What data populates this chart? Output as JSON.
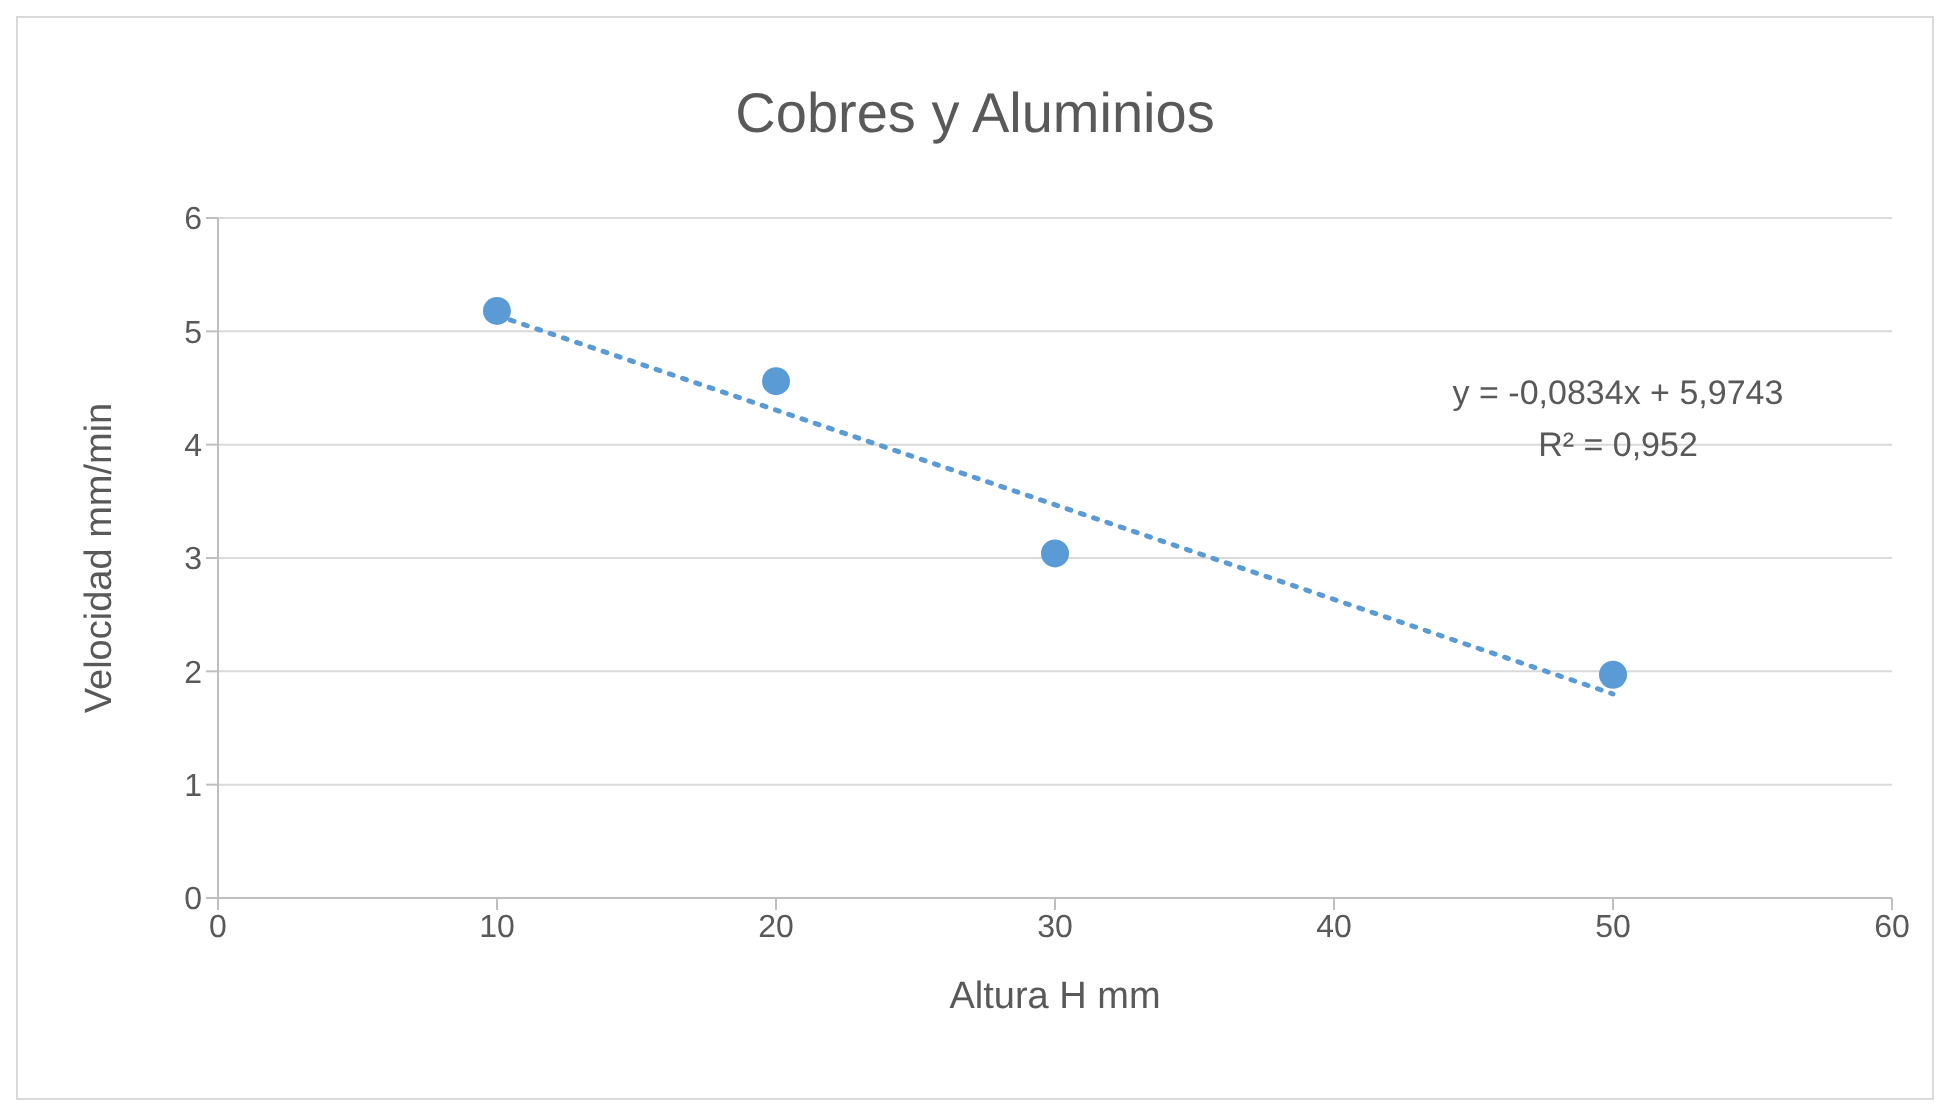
{
  "chart_data": {
    "type": "scatter",
    "title": "Cobres y Aluminios",
    "xlabel": "Altura H mm",
    "ylabel": "Velocidad mm/min",
    "x": [
      10,
      20,
      30,
      50
    ],
    "series": [
      {
        "color": "#5b9bd5",
        "values": [
          5.18,
          4.56,
          3.04,
          1.97
        ],
        "marker": "circle"
      },
      {
        "type": "line",
        "color": "#5b9bd5",
        "x": [
          10,
          50
        ],
        "values": [
          5.14,
          1.8
        ],
        "line_style": "dotted",
        "marker": "none"
      }
    ],
    "xlim": [
      0,
      60
    ],
    "xticks": [
      0,
      10,
      20,
      30,
      40,
      50,
      60
    ],
    "ylim": [
      0,
      6
    ],
    "yticks": [
      0,
      1,
      2,
      3,
      4,
      5,
      6
    ],
    "grid": "y",
    "legend": false,
    "annotations": [
      "y = -0,0834x + 5,9743",
      "R² = 0,952"
    ]
  }
}
